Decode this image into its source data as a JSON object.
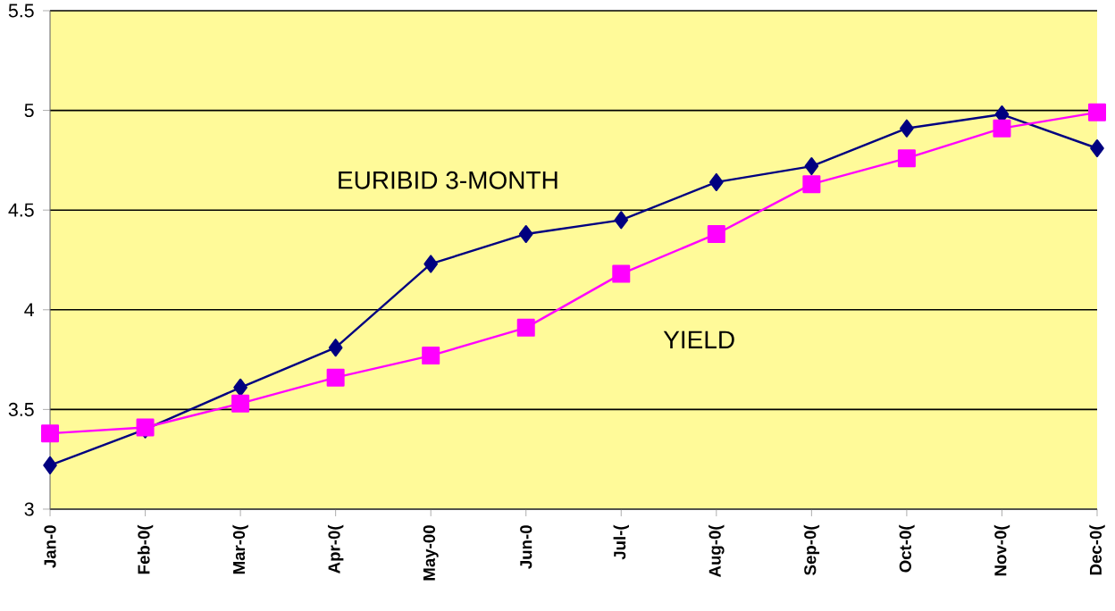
{
  "chart_data": {
    "type": "line",
    "categories": [
      "Jan-0",
      "Feb-0(",
      "Mar-0(",
      "Apr-0(",
      "May-00",
      "Jun-0",
      "Jul-(",
      "Aug-0(",
      "Sep-0(",
      "Oct-0(",
      "Nov-0(",
      "Dec-0("
    ],
    "series": [
      {
        "name": "EURIBID 3-MONTH",
        "color": "#000080",
        "marker": "diamond",
        "values": [
          3.22,
          3.4,
          3.61,
          3.81,
          4.23,
          4.38,
          4.45,
          4.64,
          4.72,
          4.91,
          4.98,
          4.81
        ]
      },
      {
        "name": "YIELD",
        "color": "#ff00ff",
        "marker": "square",
        "values": [
          3.38,
          3.41,
          3.53,
          3.66,
          3.77,
          3.91,
          4.18,
          4.38,
          4.63,
          4.76,
          4.91,
          4.99
        ]
      }
    ],
    "ylim": [
      3,
      5.5
    ],
    "yticks": [
      3,
      3.5,
      4,
      4.5,
      5,
      5.5
    ],
    "grid": "y",
    "line_style": "solid"
  }
}
